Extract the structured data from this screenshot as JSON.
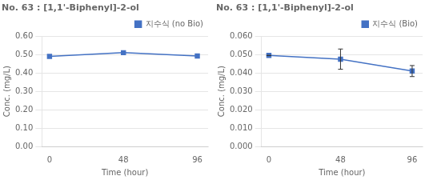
{
  "chart_data": [
    {
      "type": "line",
      "title": "No. 63 : [1,1'-Biphenyl]-2-ol",
      "xlabel": "Time (hour)",
      "ylabel": "Conc. (mg/L)",
      "x": [
        0,
        48,
        96
      ],
      "series": [
        {
          "name": "지수식 (no Bio)",
          "color": "#4472C4",
          "marker": "square",
          "values": [
            0.49,
            0.51,
            0.492
          ]
        }
      ],
      "xlim": [
        -5,
        103
      ],
      "xticks": [
        0,
        48,
        96
      ],
      "ylim": [
        0.0,
        0.6
      ],
      "yticks": [
        {
          "value": 0.0,
          "label": "0.00"
        },
        {
          "value": 0.1,
          "label": "0.10"
        },
        {
          "value": 0.2,
          "label": "0.20"
        },
        {
          "value": 0.3,
          "label": "0.30"
        },
        {
          "value": 0.4,
          "label": "0.40"
        },
        {
          "value": 0.5,
          "label": "0.50"
        },
        {
          "value": 0.6,
          "label": "0.60"
        }
      ],
      "grid": "y",
      "legend": "upper right"
    },
    {
      "type": "line",
      "title": "No. 63 : [1,1'-Biphenyl]-2-ol",
      "xlabel": "Time (hour)",
      "ylabel": "Conc. (mg/L)",
      "x": [
        0,
        48,
        96
      ],
      "series": [
        {
          "name": "지수식 (Bio)",
          "color": "#4472C4",
          "marker": "square",
          "values": [
            0.0495,
            0.0475,
            0.041
          ],
          "yerr": [
            0.0,
            0.0055,
            0.003
          ]
        }
      ],
      "xlim": [
        -5,
        103
      ],
      "xticks": [
        0,
        48,
        96
      ],
      "ylim": [
        0.0,
        0.06
      ],
      "yticks": [
        {
          "value": 0.0,
          "label": "0.000"
        },
        {
          "value": 0.01,
          "label": "0.010"
        },
        {
          "value": 0.02,
          "label": "0.020"
        },
        {
          "value": 0.03,
          "label": "0.030"
        },
        {
          "value": 0.04,
          "label": "0.040"
        },
        {
          "value": 0.05,
          "label": "0.050"
        },
        {
          "value": 0.06,
          "label": "0.060"
        }
      ],
      "grid": "y",
      "legend": "upper right"
    }
  ]
}
